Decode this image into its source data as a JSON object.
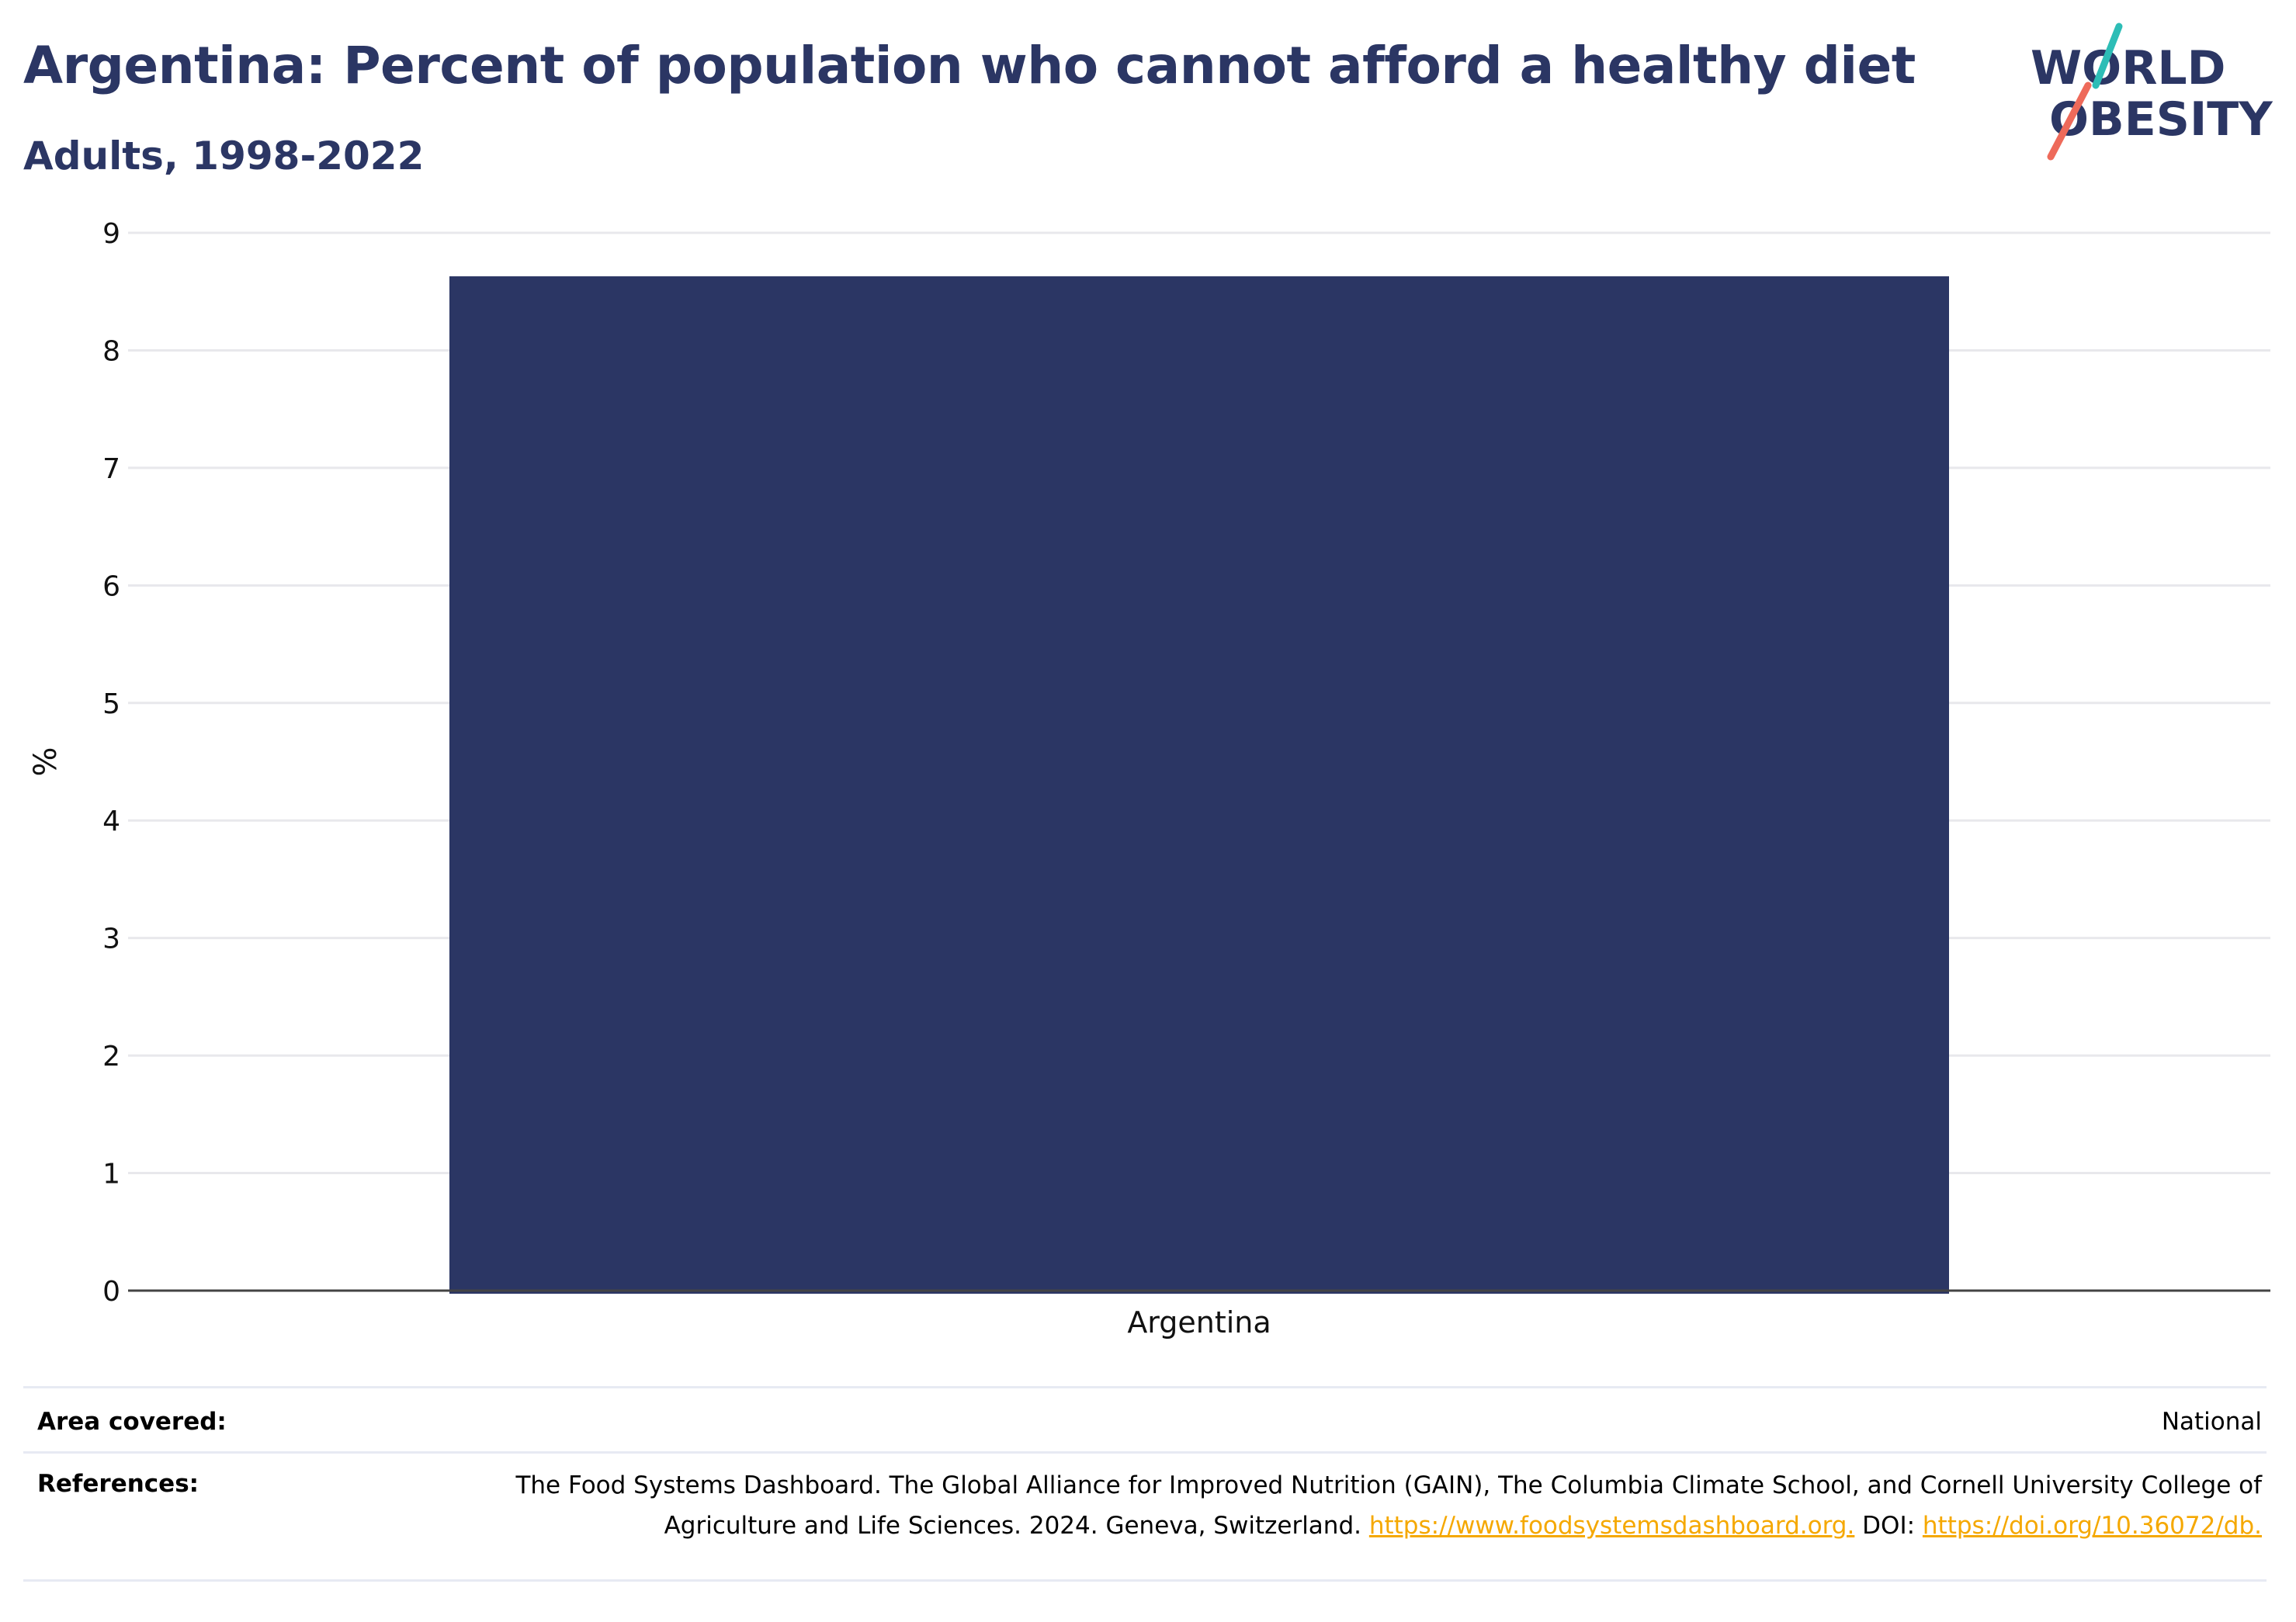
{
  "title": "Argentina: Percent of population who cannot afford a healthy diet",
  "subtitle": "Adults, 1998-2022",
  "logo": {
    "line1": "WORLD",
    "line2": "OBESITY",
    "colors": {
      "text": "#2b3664",
      "teal": "#2dbdb6",
      "coral": "#ee6a5a"
    }
  },
  "chart_data": {
    "type": "bar",
    "categories": [
      "Argentina"
    ],
    "values": [
      8.63
    ],
    "ylabel": "%",
    "xlabel": "",
    "ylim": [
      0,
      9
    ],
    "yticks": [
      "0",
      "1",
      "2",
      "3",
      "4",
      "5",
      "6",
      "7",
      "8",
      "9"
    ],
    "grid": true,
    "bar_color": "#2b3664"
  },
  "footer": {
    "area_label": "Area covered:",
    "area_value": "National",
    "references_label": "References:",
    "references_text": "The Food Systems Dashboard. The Global Alliance for Improved Nutrition (GAIN), The Columbia Climate School, and Cornell University College of Agriculture and Life Sciences. 2024. Geneva, Switzerland. ",
    "link1": "https://www.foodsystemsdashboard.org.",
    "doi_label": " DOI: ",
    "link2": "https://doi.org/10.36072/db.",
    "link_color": "#f5a800"
  }
}
